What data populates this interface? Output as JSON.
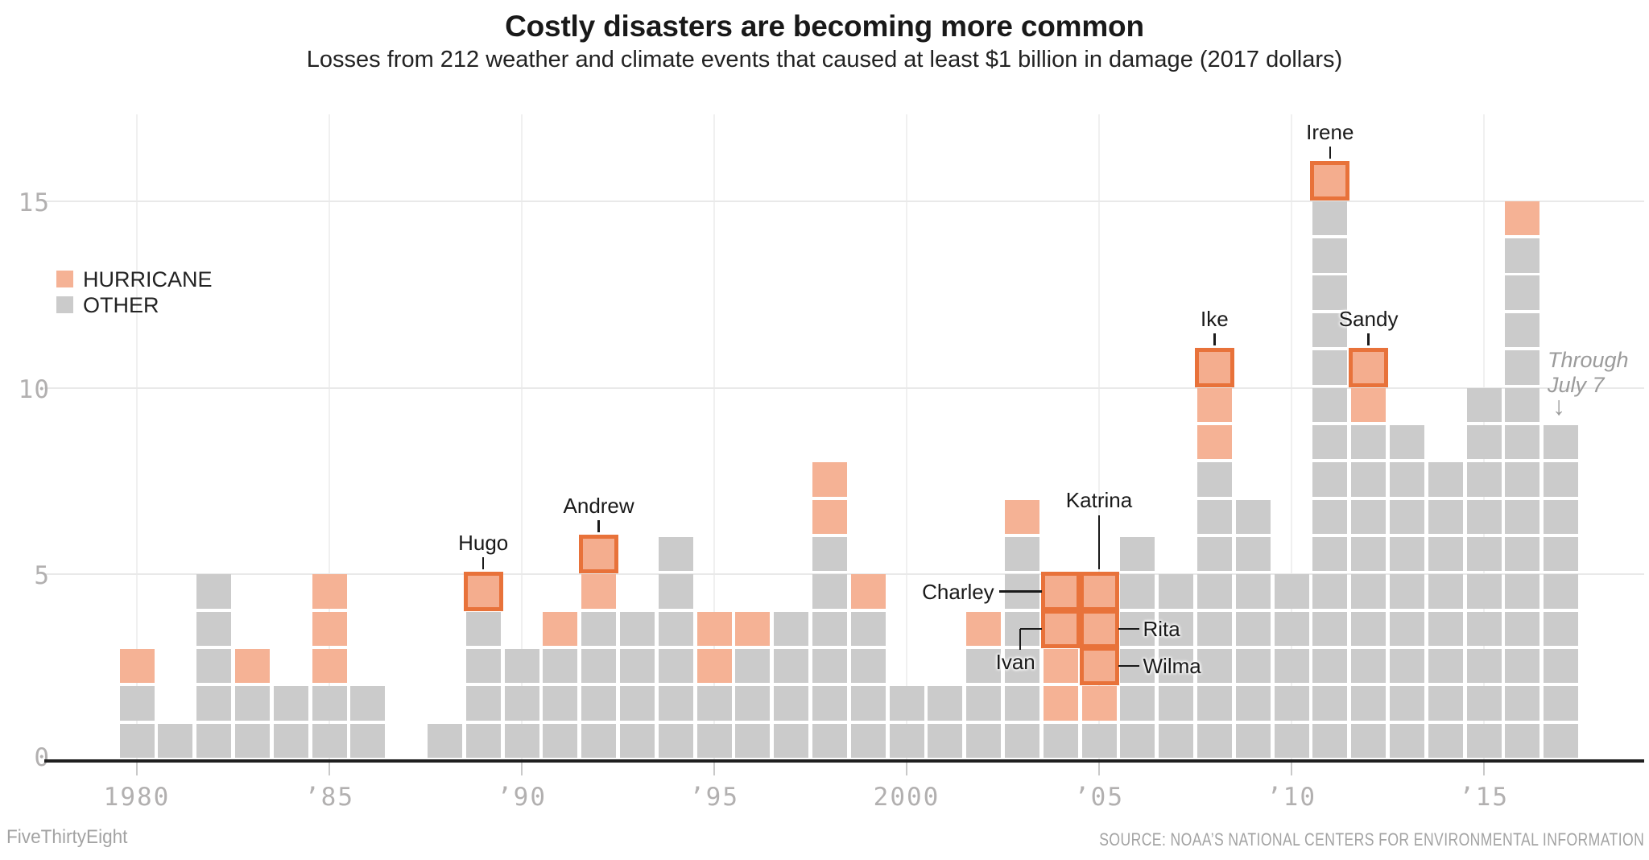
{
  "title": "Costly disasters are becoming more common",
  "subtitle": "Losses from 212 weather and climate events that caused at least $1 billion in damage (2017 dollars)",
  "legend": {
    "hurricane_label": "HURRICANE",
    "other_label": "OTHER"
  },
  "note": {
    "line1": "Through",
    "line2": "July 7",
    "arrow": "↓"
  },
  "footer": {
    "left": "FiveThirtyEight",
    "right": "SOURCE: NOAA’S NATIONAL CENTERS FOR ENVIRONMENTAL INFORMATION"
  },
  "colors": {
    "hurricane": "#f5b295",
    "hurricane_highlight_fill": "#f4ad8e",
    "hurricane_highlight_border": "#e8723a",
    "other": "#cbcbcb",
    "axis": "#1f1f1f",
    "grid_horizontal": "#e9e9e9",
    "grid_vertical": "#f0f0f0",
    "tick_label": "#b2b0b0"
  },
  "chart_data": {
    "type": "bar",
    "subtype": "stacked-unit-square-bars",
    "title": "Costly disasters are becoming more common",
    "subtitle": "Losses from 212 weather and climate events that caused at least $1 billion in damage (2017 dollars)",
    "xlabel": "",
    "ylabel": "",
    "ylim": [
      0,
      17
    ],
    "y_ticks": [
      0,
      5,
      10,
      15
    ],
    "x_ticks": [
      {
        "year": 1980,
        "label": "1980"
      },
      {
        "year": 1985,
        "label": "’85"
      },
      {
        "year": 1990,
        "label": "’90"
      },
      {
        "year": 1995,
        "label": "’95"
      },
      {
        "year": 2000,
        "label": "2000"
      },
      {
        "year": 2005,
        "label": "’05"
      },
      {
        "year": 2010,
        "label": "’10"
      },
      {
        "year": 2015,
        "label": "’15"
      }
    ],
    "categories": [
      1980,
      1981,
      1982,
      1983,
      1984,
      1985,
      1986,
      1987,
      1988,
      1989,
      1990,
      1991,
      1992,
      1993,
      1994,
      1995,
      1996,
      1997,
      1998,
      1999,
      2000,
      2001,
      2002,
      2003,
      2004,
      2005,
      2006,
      2007,
      2008,
      2009,
      2010,
      2011,
      2012,
      2013,
      2014,
      2015,
      2016,
      2017
    ],
    "series": [
      {
        "name": "OTHER",
        "values": [
          2,
          1,
          5,
          2,
          2,
          2,
          2,
          0,
          1,
          4,
          3,
          3,
          4,
          4,
          6,
          2,
          3,
          4,
          6,
          4,
          2,
          2,
          3,
          6,
          1,
          1,
          6,
          5,
          8,
          7,
          5,
          15,
          9,
          9,
          8,
          10,
          14,
          9
        ]
      },
      {
        "name": "HURRICANE",
        "values": [
          1,
          0,
          0,
          1,
          0,
          3,
          0,
          0,
          0,
          1,
          0,
          1,
          2,
          0,
          0,
          2,
          1,
          0,
          2,
          1,
          0,
          0,
          1,
          1,
          4,
          4,
          0,
          0,
          3,
          0,
          0,
          1,
          2,
          0,
          0,
          0,
          1,
          0
        ]
      }
    ],
    "total_events": 212,
    "highlighted_hurricanes": [
      {
        "name": "Hugo",
        "year": 1989,
        "row": 5,
        "callout": "above"
      },
      {
        "name": "Andrew",
        "year": 1992,
        "row": 6,
        "callout": "above"
      },
      {
        "name": "Charley",
        "year": 2004,
        "row": 5,
        "callout": "left"
      },
      {
        "name": "Ivan",
        "year": 2004,
        "row": 4,
        "callout": "elbow"
      },
      {
        "name": "Katrina",
        "year": 2005,
        "row": 5,
        "callout": "above-long"
      },
      {
        "name": "Rita",
        "year": 2005,
        "row": 4,
        "callout": "right"
      },
      {
        "name": "Wilma",
        "year": 2005,
        "row": 3,
        "callout": "right"
      },
      {
        "name": "Ike",
        "year": 2008,
        "row": 11,
        "callout": "above"
      },
      {
        "name": "Irene",
        "year": 2011,
        "row": 16,
        "callout": "above"
      },
      {
        "name": "Sandy",
        "year": 2012,
        "row": 11,
        "callout": "above"
      }
    ],
    "annotation_note": "Through July 7",
    "legend_position": "upper-left",
    "grid": true
  }
}
